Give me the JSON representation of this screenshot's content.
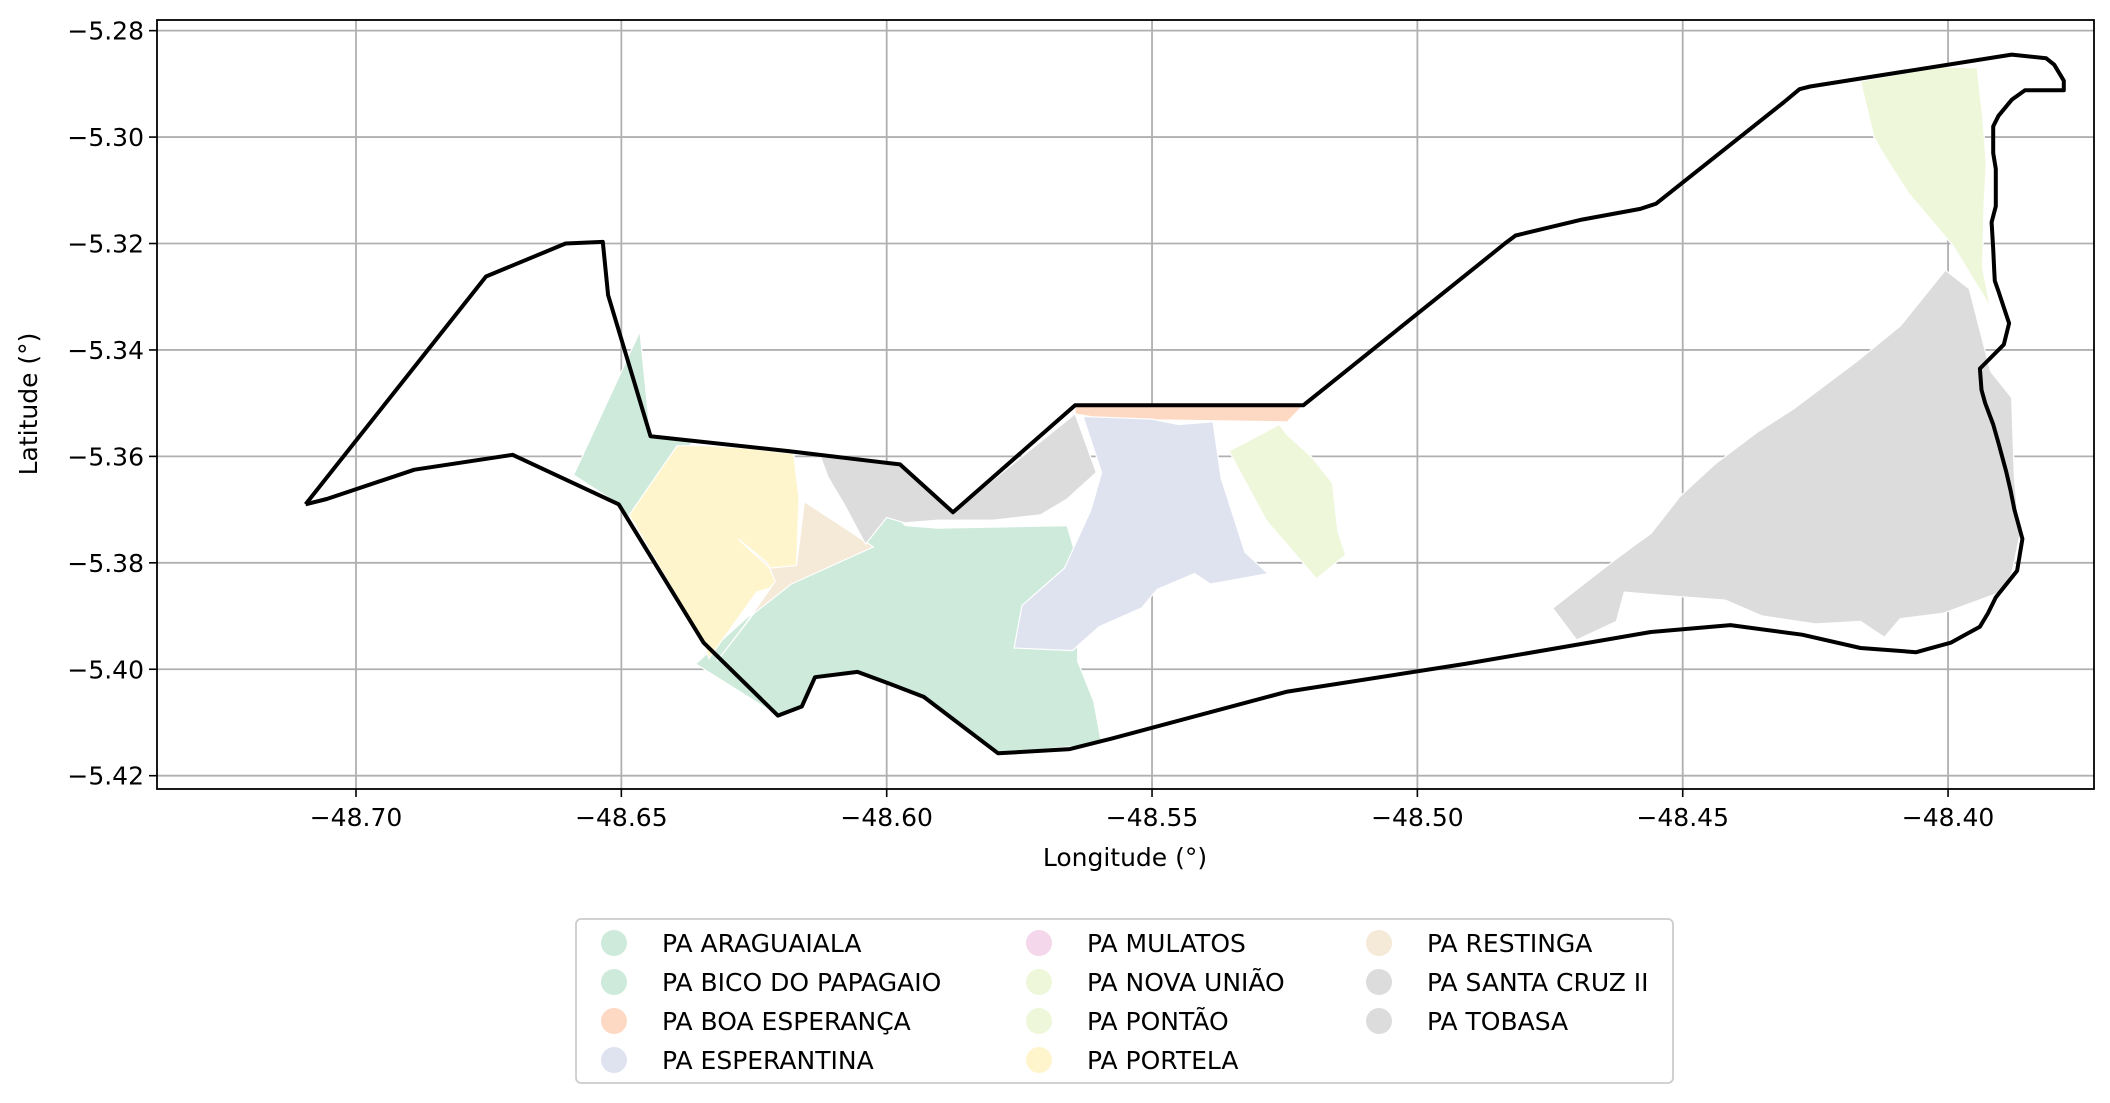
{
  "chart_data": {
    "type": "map",
    "xlabel": "Longitude (°)",
    "ylabel": "Latitude (°)",
    "xlim": [
      -48.7375,
      -48.3725
    ],
    "ylim": [
      -5.4225,
      -5.278
    ],
    "grid": true,
    "legend_placement": "bottom-center",
    "x_ticks": [
      {
        "value": -48.7,
        "label": "−48.70"
      },
      {
        "value": -48.65,
        "label": "−48.65"
      },
      {
        "value": -48.6,
        "label": "−48.60"
      },
      {
        "value": -48.55,
        "label": "−48.55"
      },
      {
        "value": -48.5,
        "label": "−48.50"
      },
      {
        "value": -48.45,
        "label": "−48.45"
      },
      {
        "value": -48.4,
        "label": "−48.40"
      }
    ],
    "y_ticks": [
      {
        "value": -5.28,
        "label": "−5.28"
      },
      {
        "value": -5.3,
        "label": "−5.30"
      },
      {
        "value": -5.32,
        "label": "−5.32"
      },
      {
        "value": -5.34,
        "label": "−5.34"
      },
      {
        "value": -5.36,
        "label": "−5.36"
      },
      {
        "value": -5.38,
        "label": "−5.38"
      },
      {
        "value": -5.4,
        "label": "−5.40"
      },
      {
        "value": -5.42,
        "label": "−5.42"
      }
    ],
    "outline_color": "#000000",
    "boundary": [
      [
        -48.7095,
        -5.369
      ],
      [
        -48.7055,
        -5.368
      ],
      [
        -48.689,
        -5.3625
      ],
      [
        -48.6705,
        -5.3597
      ],
      [
        -48.6505,
        -5.369
      ],
      [
        -48.6345,
        -5.395
      ],
      [
        -48.6205,
        -5.4087
      ],
      [
        -48.616,
        -5.407
      ],
      [
        -48.6135,
        -5.4015
      ],
      [
        -48.6055,
        -5.4005
      ],
      [
        -48.5995,
        -5.4027
      ],
      [
        -48.593,
        -5.4052
      ],
      [
        -48.579,
        -5.4158
      ],
      [
        -48.5655,
        -5.415
      ],
      [
        -48.5575,
        -5.413
      ],
      [
        -48.5245,
        -5.4042
      ],
      [
        -48.491,
        -5.399
      ],
      [
        -48.456,
        -5.393
      ],
      [
        -48.441,
        -5.3917
      ],
      [
        -48.4275,
        -5.3935
      ],
      [
        -48.4165,
        -5.396
      ],
      [
        -48.406,
        -5.3968
      ],
      [
        -48.3995,
        -5.395
      ],
      [
        -48.394,
        -5.392
      ],
      [
        -48.3925,
        -5.3895
      ],
      [
        -48.391,
        -5.3865
      ],
      [
        -48.389,
        -5.384
      ],
      [
        -48.387,
        -5.3815
      ],
      [
        -48.386,
        -5.3755
      ],
      [
        -48.3875,
        -5.37
      ],
      [
        -48.3882,
        -5.3665
      ],
      [
        -48.389,
        -5.363
      ],
      [
        -48.3905,
        -5.3575
      ],
      [
        -48.3915,
        -5.354
      ],
      [
        -48.393,
        -5.35
      ],
      [
        -48.3937,
        -5.3475
      ],
      [
        -48.394,
        -5.3435
      ],
      [
        -48.391,
        -5.3405
      ],
      [
        -48.3895,
        -5.339
      ],
      [
        -48.3885,
        -5.335
      ],
      [
        -48.3895,
        -5.332
      ],
      [
        -48.3905,
        -5.329
      ],
      [
        -48.3912,
        -5.327
      ],
      [
        -48.3913,
        -5.325
      ],
      [
        -48.3915,
        -5.321
      ],
      [
        -48.3918,
        -5.316
      ],
      [
        -48.391,
        -5.313
      ],
      [
        -48.391,
        -5.31
      ],
      [
        -48.391,
        -5.306
      ],
      [
        -48.3915,
        -5.303
      ],
      [
        -48.3915,
        -5.298
      ],
      [
        -48.3905,
        -5.296
      ],
      [
        -48.388,
        -5.293
      ],
      [
        -48.3855,
        -5.2912
      ],
      [
        -48.3782,
        -5.2912
      ],
      [
        -48.3782,
        -5.2894
      ],
      [
        -48.38,
        -5.2864
      ],
      [
        -48.3815,
        -5.2852
      ],
      [
        -48.388,
        -5.2845
      ],
      [
        -48.426,
        -5.2905
      ],
      [
        -48.428,
        -5.291
      ],
      [
        -48.431,
        -5.2935
      ],
      [
        -48.455,
        -5.3125
      ],
      [
        -48.458,
        -5.3135
      ],
      [
        -48.469,
        -5.3155
      ],
      [
        -48.4815,
        -5.3185
      ],
      [
        -48.4835,
        -5.32
      ],
      [
        -48.4885,
        -5.324
      ],
      [
        -48.5215,
        -5.3504
      ],
      [
        -48.5645,
        -5.3504
      ],
      [
        -48.5875,
        -5.3705
      ],
      [
        -48.5975,
        -5.3615
      ],
      [
        -48.6185,
        -5.359
      ],
      [
        -48.6445,
        -5.3562
      ],
      [
        -48.6525,
        -5.3297
      ],
      [
        -48.6535,
        -5.3197
      ],
      [
        -48.6605,
        -5.32
      ],
      [
        -48.6755,
        -5.3262
      ],
      [
        -48.7095,
        -5.369
      ]
    ],
    "settlements": [
      {
        "name": "PA ARAGUAIALA",
        "color": "#cdeadb",
        "polygons": [
          [
            [
              -48.659,
              -5.3635
            ],
            [
              -48.6465,
              -5.3365
            ],
            [
              -48.6445,
              -5.3562
            ],
            [
              -48.6365,
              -5.3572
            ],
            [
              -48.6485,
              -5.3715
            ],
            [
              -48.6505,
              -5.369
            ]
          ]
        ]
      },
      {
        "name": "PA BICO DO PAPAGAIO",
        "color": "#cdeadb",
        "polygons": [
          [
            [
              -48.636,
              -5.399
            ],
            [
              -48.626,
              -5.39
            ],
            [
              -48.619,
              -5.3845
            ],
            [
              -48.604,
              -5.376
            ],
            [
              -48.6,
              -5.3695
            ],
            [
              -48.5965,
              -5.373
            ],
            [
              -48.5905,
              -5.3735
            ],
            [
              -48.566,
              -5.373
            ],
            [
              -48.5635,
              -5.3815
            ],
            [
              -48.564,
              -5.392
            ],
            [
              -48.564,
              -5.3985
            ],
            [
              -48.561,
              -5.406
            ],
            [
              -48.5595,
              -5.414
            ],
            [
              -48.579,
              -5.4158
            ],
            [
              -48.593,
              -5.4052
            ],
            [
              -48.6055,
              -5.4005
            ],
            [
              -48.6135,
              -5.4015
            ],
            [
              -48.616,
              -5.407
            ],
            [
              -48.6205,
              -5.4087
            ]
          ]
        ]
      },
      {
        "name": "PA BOA ESPERANÇA",
        "color": "#fdd9c3",
        "polygons": [
          [
            [
              -48.5645,
              -5.3504
            ],
            [
              -48.5215,
              -5.3504
            ],
            [
              -48.5245,
              -5.3535
            ],
            [
              -48.559,
              -5.353
            ],
            [
              -48.5645,
              -5.352
            ]
          ]
        ]
      },
      {
        "name": "PA ESPERANTINA",
        "color": "#dfe3f0",
        "polygons": [
          [
            [
              -48.563,
              -5.3525
            ],
            [
              -48.55,
              -5.353
            ],
            [
              -48.545,
              -5.354
            ],
            [
              -48.5385,
              -5.3535
            ],
            [
              -48.537,
              -5.364
            ],
            [
              -48.5325,
              -5.378
            ],
            [
              -48.526,
              -5.384
            ],
            [
              -48.523,
              -5.3865
            ],
            [
              -48.528,
              -5.382
            ],
            [
              -48.539,
              -5.384
            ],
            [
              -48.542,
              -5.382
            ],
            [
              -48.549,
              -5.385
            ],
            [
              -48.552,
              -5.3885
            ],
            [
              -48.56,
              -5.392
            ],
            [
              -48.565,
              -5.3965
            ],
            [
              -48.576,
              -5.396
            ],
            [
              -48.5745,
              -5.388
            ],
            [
              -48.5665,
              -5.381
            ],
            [
              -48.5615,
              -5.37
            ],
            [
              -48.5595,
              -5.363
            ]
          ]
        ]
      },
      {
        "name": "PA MULATOS",
        "color": "#f4d7ea",
        "polygons": []
      },
      {
        "name": "PA NOVA UNIÃO",
        "color": "#eef7da",
        "polygons": [
          [
            [
              -48.4165,
              -5.2895
            ],
            [
              -48.414,
              -5.3
            ],
            [
              -48.412,
              -5.3035
            ],
            [
              -48.4075,
              -5.3105
            ],
            [
              -48.399,
              -5.3205
            ],
            [
              -48.392,
              -5.332
            ],
            [
              -48.3935,
              -5.3245
            ],
            [
              -48.3932,
              -5.3125
            ],
            [
              -48.3928,
              -5.305
            ],
            [
              -48.3935,
              -5.296
            ],
            [
              -48.3945,
              -5.287
            ],
            [
              -48.4015,
              -5.2868
            ],
            [
              -48.4165,
              -5.2895
            ]
          ]
        ]
      },
      {
        "name": "PA PONTÃO",
        "color": "#eef7da",
        "polygons": [
          [
            [
              -48.5355,
              -5.359
            ],
            [
              -48.526,
              -5.354
            ],
            [
              -48.5245,
              -5.356
            ],
            [
              -48.52,
              -5.36
            ],
            [
              -48.516,
              -5.365
            ],
            [
              -48.515,
              -5.374
            ],
            [
              -48.5135,
              -5.3785
            ],
            [
              -48.519,
              -5.383
            ],
            [
              -48.5285,
              -5.372
            ]
          ]
        ]
      },
      {
        "name": "PA PORTELA",
        "color": "#fff5cc",
        "polygons": [
          [
            [
              -48.6485,
              -5.371
            ],
            [
              -48.6395,
              -5.358
            ],
            [
              -48.6335,
              -5.358
            ],
            [
              -48.626,
              -5.3585
            ],
            [
              -48.6175,
              -5.3595
            ],
            [
              -48.6165,
              -5.368
            ],
            [
              -48.617,
              -5.381
            ],
            [
              -48.618,
              -5.3835
            ],
            [
              -48.6245,
              -5.3855
            ],
            [
              -48.6335,
              -5.398
            ],
            [
              -48.6345,
              -5.395
            ]
          ]
        ]
      },
      {
        "name": "PA RESTINGA",
        "color": "#f5e9d8",
        "polygons": [
          [
            [
              -48.628,
              -5.3755
            ],
            [
              -48.6225,
              -5.38
            ],
            [
              -48.621,
              -5.3835
            ],
            [
              -48.627,
              -5.392
            ],
            [
              -48.632,
              -5.3985
            ],
            [
              -48.625,
              -5.3895
            ],
            [
              -48.618,
              -5.384
            ],
            [
              -48.6025,
              -5.377
            ],
            [
              -48.6155,
              -5.3685
            ],
            [
              -48.617,
              -5.3805
            ],
            [
              -48.622,
              -5.381
            ]
          ]
        ]
      },
      {
        "name": "PA SANTA CRUZ II",
        "color": "#dcdcdc",
        "polygons": [
          [
            [
              -48.6125,
              -5.36
            ],
            [
              -48.611,
              -5.364
            ],
            [
              -48.608,
              -5.369
            ],
            [
              -48.604,
              -5.3765
            ],
            [
              -48.6,
              -5.3715
            ],
            [
              -48.5965,
              -5.3725
            ],
            [
              -48.5905,
              -5.372
            ],
            [
              -48.58,
              -5.372
            ],
            [
              -48.571,
              -5.371
            ],
            [
              -48.566,
              -5.368
            ],
            [
              -48.5605,
              -5.363
            ],
            [
              -48.5645,
              -5.352
            ],
            [
              -48.5875,
              -5.3705
            ],
            [
              -48.5975,
              -5.3615
            ],
            [
              -48.6055,
              -5.3605
            ]
          ]
        ]
      },
      {
        "name": "PA TOBASA",
        "color": "#dcdcdc",
        "polygons": [
          [
            [
              -48.4745,
              -5.3885
            ],
            [
              -48.4635,
              -5.38
            ],
            [
              -48.4595,
              -5.377
            ],
            [
              -48.456,
              -5.3745
            ],
            [
              -48.4505,
              -5.3675
            ],
            [
              -48.444,
              -5.3615
            ],
            [
              -48.436,
              -5.3555
            ],
            [
              -48.429,
              -5.351
            ],
            [
              -48.417,
              -5.342
            ],
            [
              -48.409,
              -5.3355
            ],
            [
              -48.4005,
              -5.325
            ],
            [
              -48.396,
              -5.3285
            ],
            [
              -48.392,
              -5.344
            ],
            [
              -48.388,
              -5.349
            ],
            [
              -48.3875,
              -5.364
            ],
            [
              -48.3865,
              -5.375
            ],
            [
              -48.388,
              -5.382
            ],
            [
              -48.39,
              -5.3855
            ],
            [
              -48.401,
              -5.3895
            ],
            [
              -48.409,
              -5.3905
            ],
            [
              -48.412,
              -5.394
            ],
            [
              -48.4165,
              -5.391
            ],
            [
              -48.425,
              -5.3915
            ],
            [
              -48.435,
              -5.39
            ],
            [
              -48.442,
              -5.387
            ],
            [
              -48.455,
              -5.386
            ],
            [
              -48.461,
              -5.3855
            ],
            [
              -48.4625,
              -5.391
            ],
            [
              -48.47,
              -5.3945
            ]
          ]
        ]
      }
    ],
    "legend": {
      "columns": 3,
      "items": [
        {
          "label": "PA ARAGUAIALA",
          "color": "#cdeadb"
        },
        {
          "label": "PA BICO DO PAPAGAIO",
          "color": "#cdeadb"
        },
        {
          "label": "PA BOA ESPERANÇA",
          "color": "#fdd9c3"
        },
        {
          "label": "PA ESPERANTINA",
          "color": "#dfe3f0"
        },
        {
          "label": "PA MULATOS",
          "color": "#f4d7ea"
        },
        {
          "label": "PA NOVA UNIÃO",
          "color": "#eef7da"
        },
        {
          "label": "PA PONTÃO",
          "color": "#eef7da"
        },
        {
          "label": "PA PORTELA",
          "color": "#fff5cc"
        },
        {
          "label": "PA RESTINGA",
          "color": "#f5e9d8"
        },
        {
          "label": "PA SANTA CRUZ II",
          "color": "#dcdcdc"
        },
        {
          "label": "PA TOBASA",
          "color": "#dcdcdc"
        }
      ]
    }
  }
}
